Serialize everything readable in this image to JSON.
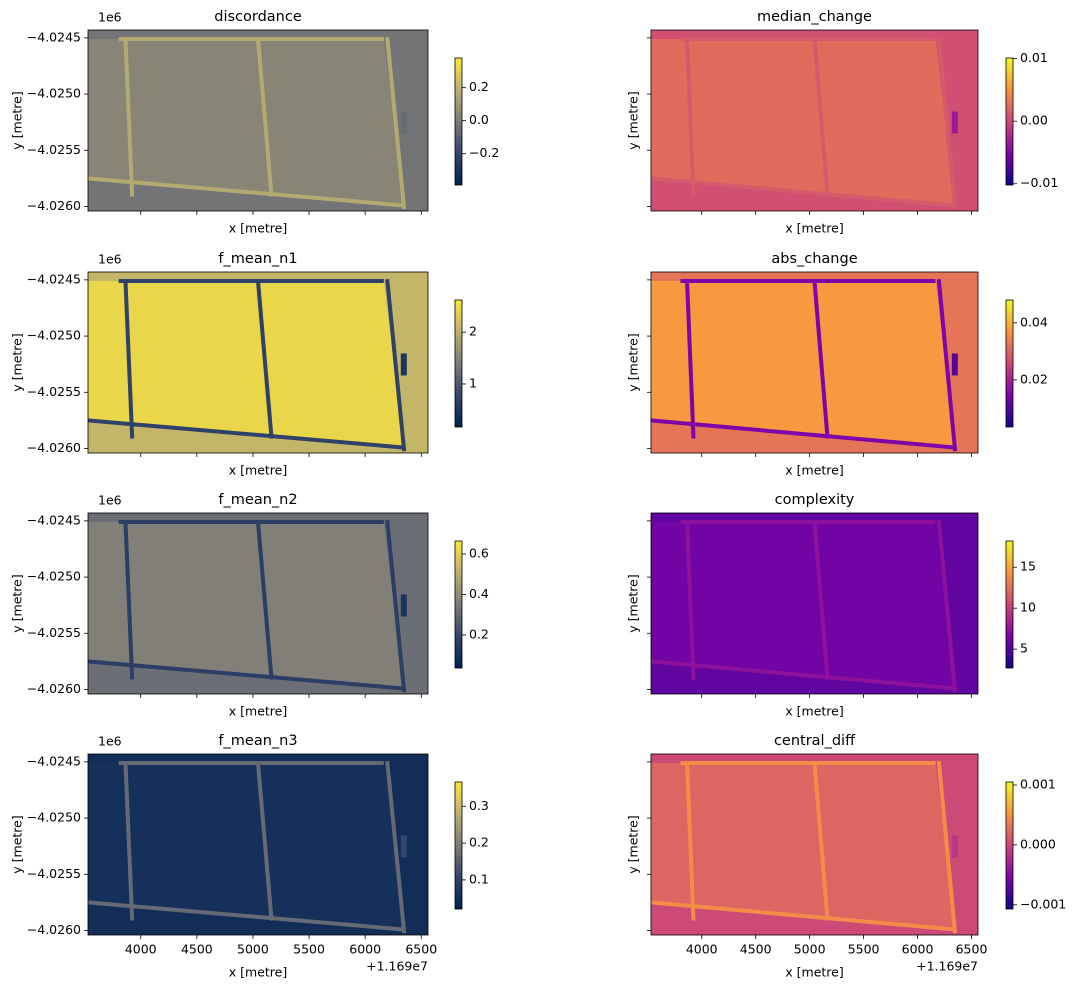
{
  "chart_data": [
    {
      "type": "heatmap",
      "title": "discordance",
      "xlabel": "x [metre]",
      "ylabel": "y [metre]",
      "cmap": "cividis",
      "y_offset_text": "1e6",
      "show_xticklabels": false,
      "show_yticklabels": true,
      "xlim": [
        3530,
        6560
      ],
      "ylim": [
        -4.02604,
        -4.02443
      ],
      "xticks": [
        4000,
        4500,
        5000,
        5500,
        6000,
        6500
      ],
      "yticks": [
        {
          "value": -4.0245,
          "label": "−4.0245"
        },
        {
          "value": -4.025,
          "label": "−4.0250"
        },
        {
          "value": -4.0255,
          "label": "−4.0255"
        },
        {
          "value": -4.026,
          "label": "−4.0260"
        }
      ],
      "clim": [
        -0.39,
        0.38
      ],
      "cticks": [
        {
          "value": -0.2,
          "label": "−0.2"
        },
        {
          "value": 0.0,
          "label": "0.0"
        },
        {
          "value": 0.2,
          "label": "0.2"
        }
      ]
    },
    {
      "type": "heatmap",
      "title": "median_change",
      "xlabel": "x [metre]",
      "ylabel": "y [metre]",
      "cmap": "plasma",
      "show_xticklabels": false,
      "show_yticklabels": false,
      "xlim": [
        3530,
        6560
      ],
      "ylim": [
        -4.02604,
        -4.02443
      ],
      "xticks": [
        4000,
        4500,
        5000,
        5500,
        6000,
        6500
      ],
      "yticks": [
        -4.0245,
        -4.025,
        -4.0255,
        -4.026
      ],
      "clim": [
        -0.0102,
        0.0101
      ],
      "cticks": [
        {
          "value": -0.01,
          "label": "−0.01"
        },
        {
          "value": 0.0,
          "label": "0.00"
        },
        {
          "value": 0.01,
          "label": "0.01"
        }
      ]
    },
    {
      "type": "heatmap",
      "title": "f_mean_n1",
      "xlabel": "x [metre]",
      "ylabel": "y [metre]",
      "cmap": "cividis",
      "y_offset_text": "1e6",
      "show_xticklabels": false,
      "show_yticklabels": true,
      "xlim": [
        3530,
        6560
      ],
      "ylim": [
        -4.02604,
        -4.02443
      ],
      "xticks": [
        4000,
        4500,
        5000,
        5500,
        6000,
        6500
      ],
      "yticks": [
        {
          "value": -4.0245,
          "label": "−4.0245"
        },
        {
          "value": -4.025,
          "label": "−4.0250"
        },
        {
          "value": -4.0255,
          "label": "−4.0255"
        },
        {
          "value": -4.026,
          "label": "−4.0260"
        }
      ],
      "clim": [
        0.17,
        2.62
      ],
      "cticks": [
        1,
        2
      ]
    },
    {
      "type": "heatmap",
      "title": "abs_change",
      "xlabel": "x [metre]",
      "ylabel": "y [metre]",
      "cmap": "plasma",
      "show_xticklabels": false,
      "show_yticklabels": false,
      "xlim": [
        3530,
        6560
      ],
      "ylim": [
        -4.02604,
        -4.02443
      ],
      "xticks": [
        4000,
        4500,
        5000,
        5500,
        6000,
        6500
      ],
      "yticks": [
        -4.0245,
        -4.025,
        -4.0255,
        -4.026
      ],
      "clim": [
        0.0035,
        0.048
      ],
      "cticks": [
        0.02,
        0.04
      ]
    },
    {
      "type": "heatmap",
      "title": "f_mean_n2",
      "xlabel": "x [metre]",
      "ylabel": "y [metre]",
      "cmap": "cividis",
      "y_offset_text": "1e6",
      "show_xticklabels": false,
      "show_yticklabels": true,
      "xlim": [
        3530,
        6560
      ],
      "ylim": [
        -4.02604,
        -4.02443
      ],
      "xticks": [
        4000,
        4500,
        5000,
        5500,
        6000,
        6500
      ],
      "yticks": [
        {
          "value": -4.0245,
          "label": "−4.0245"
        },
        {
          "value": -4.025,
          "label": "−4.0250"
        },
        {
          "value": -4.0255,
          "label": "−4.0255"
        },
        {
          "value": -4.026,
          "label": "−4.0260"
        }
      ],
      "clim": [
        0.037,
        0.664
      ],
      "cticks": [
        0.2,
        0.4,
        0.6
      ]
    },
    {
      "type": "heatmap",
      "title": "complexity",
      "xlabel": "x [metre]",
      "ylabel": "y [metre]",
      "cmap": "plasma",
      "show_xticklabels": false,
      "show_yticklabels": false,
      "xlim": [
        3530,
        6560
      ],
      "ylim": [
        -4.02604,
        -4.02443
      ],
      "xticks": [
        4000,
        4500,
        5000,
        5500,
        6000,
        6500
      ],
      "yticks": [
        -4.0245,
        -4.025,
        -4.0255,
        -4.026
      ],
      "clim": [
        2.7,
        18.2
      ],
      "cticks": [
        5,
        10,
        15
      ]
    },
    {
      "type": "heatmap",
      "title": "f_mean_n3",
      "xlabel": "x [metre]",
      "ylabel": "y [metre]",
      "cmap": "cividis",
      "y_offset_text": "1e6",
      "x_offset_text": "+1.169e7",
      "show_xticklabels": true,
      "show_yticklabels": true,
      "xlim": [
        3530,
        6560
      ],
      "ylim": [
        -4.02604,
        -4.02443
      ],
      "xticks": [
        4000,
        4500,
        5000,
        5500,
        6000,
        6500
      ],
      "yticks": [
        {
          "value": -4.0245,
          "label": "−4.0245"
        },
        {
          "value": -4.025,
          "label": "−4.0250"
        },
        {
          "value": -4.0255,
          "label": "−4.0255"
        },
        {
          "value": -4.026,
          "label": "−4.0260"
        }
      ],
      "clim": [
        0.021,
        0.366
      ],
      "cticks": [
        0.1,
        0.2,
        0.3
      ]
    },
    {
      "type": "heatmap",
      "title": "central_diff",
      "xlabel": "x [metre]",
      "ylabel": "y [metre]",
      "cmap": "plasma",
      "x_offset_text": "+1.169e7",
      "show_xticklabels": true,
      "show_yticklabels": false,
      "xlim": [
        3530,
        6560
      ],
      "ylim": [
        -4.02604,
        -4.02443
      ],
      "xticks": [
        4000,
        4500,
        5000,
        5500,
        6000,
        6500
      ],
      "yticks": [
        -4.0245,
        -4.025,
        -4.0255,
        -4.026
      ],
      "clim": [
        -0.00107,
        0.00105
      ],
      "cticks": [
        {
          "value": -0.001,
          "label": "−0.001"
        },
        {
          "value": 0.0,
          "label": "0.000"
        },
        {
          "value": 0.001,
          "label": "0.001"
        }
      ]
    }
  ]
}
